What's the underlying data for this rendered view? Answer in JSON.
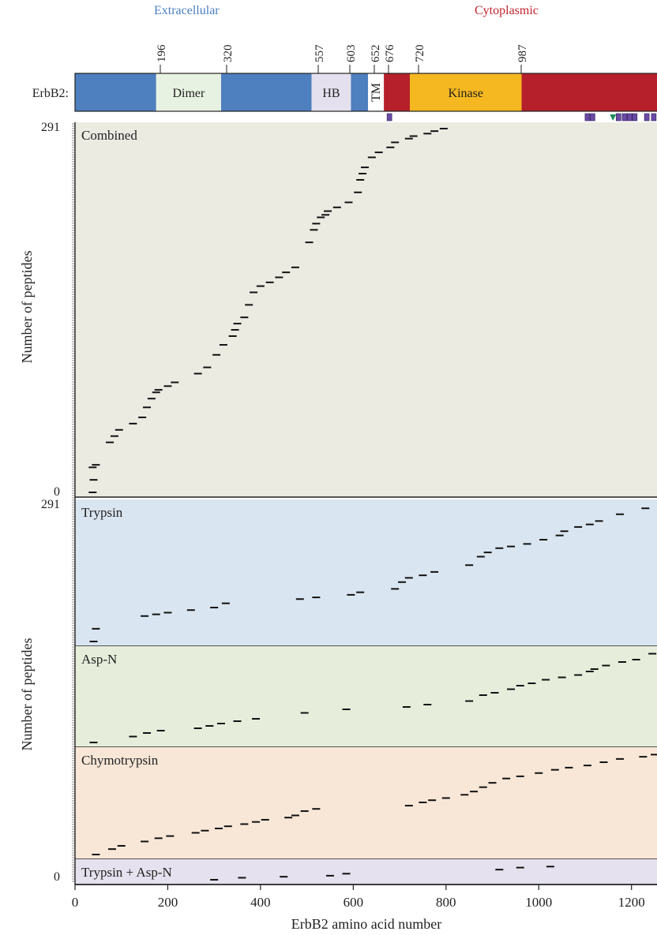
{
  "chart_data": {
    "type": "scatter",
    "xlabel": "ErbB2 amino acid number",
    "ylabel": "Number of peptides",
    "xlim": [
      0,
      1255
    ],
    "x_ticks": [
      0,
      200,
      400,
      600,
      800,
      1000,
      1200
    ],
    "y_tick_labels": {
      "combined_top": "291",
      "combined_bottom": "0",
      "lower_top": "291",
      "lower_bottom": "0"
    },
    "regions": [
      {
        "label": "Extracellular",
        "color": "#4a7fc0"
      },
      {
        "label": "Cytoplasmic",
        "color": "#c0242c"
      }
    ],
    "protein": {
      "label": "ErbB2:",
      "position_labels": [
        "196",
        "320",
        "557",
        "603",
        "652",
        "676",
        "720",
        "987"
      ],
      "domains": [
        {
          "start": 0,
          "end": 175,
          "color": "#4e7fbe",
          "text": ""
        },
        {
          "start": 175,
          "end": 315,
          "color": "#e8f2e2",
          "text": "Dimer"
        },
        {
          "start": 315,
          "end": 510,
          "color": "#4e7fbe",
          "text": ""
        },
        {
          "start": 510,
          "end": 595,
          "color": "#e5e0ee",
          "text": "HB"
        },
        {
          "start": 595,
          "end": 632,
          "color": "#4e7fbe",
          "text": ""
        },
        {
          "start": 632,
          "end": 666,
          "color": "#ffffff",
          "text": "TM"
        },
        {
          "start": 666,
          "end": 722,
          "color": "#b5202a",
          "text": ""
        },
        {
          "start": 722,
          "end": 963,
          "color": "#f5b820",
          "text": "Kinase"
        },
        {
          "start": 963,
          "end": 1255,
          "color": "#b5202a",
          "text": ""
        }
      ],
      "site_markers": [
        678,
        1105,
        1116,
        1172,
        1185,
        1196,
        1207,
        1233,
        1248
      ],
      "triangle_marker": 1160
    },
    "panels": [
      {
        "name": "Combined",
        "bg": "#ecebe2",
        "points": [
          [
            38,
            0
          ],
          [
            40,
            10
          ],
          [
            38,
            20
          ],
          [
            45,
            22
          ],
          [
            75,
            40
          ],
          [
            85,
            45
          ],
          [
            95,
            50
          ],
          [
            125,
            55
          ],
          [
            145,
            60
          ],
          [
            155,
            68
          ],
          [
            165,
            75
          ],
          [
            175,
            80
          ],
          [
            180,
            82
          ],
          [
            200,
            85
          ],
          [
            215,
            88
          ],
          [
            265,
            95
          ],
          [
            285,
            100
          ],
          [
            305,
            110
          ],
          [
            320,
            118
          ],
          [
            340,
            125
          ],
          [
            345,
            130
          ],
          [
            350,
            135
          ],
          [
            365,
            140
          ],
          [
            375,
            150
          ],
          [
            385,
            160
          ],
          [
            400,
            165
          ],
          [
            420,
            168
          ],
          [
            440,
            172
          ],
          [
            455,
            176
          ],
          [
            475,
            180
          ],
          [
            505,
            200
          ],
          [
            515,
            210
          ],
          [
            520,
            215
          ],
          [
            530,
            220
          ],
          [
            540,
            222
          ],
          [
            545,
            225
          ],
          [
            565,
            228
          ],
          [
            590,
            232
          ],
          [
            610,
            240
          ],
          [
            615,
            250
          ],
          [
            620,
            255
          ],
          [
            625,
            260
          ],
          [
            640,
            268
          ],
          [
            655,
            272
          ],
          [
            680,
            276
          ],
          [
            690,
            280
          ],
          [
            720,
            283
          ],
          [
            730,
            285
          ],
          [
            760,
            287
          ],
          [
            775,
            289
          ],
          [
            795,
            291
          ]
        ]
      },
      {
        "name": "Trypsin",
        "bg": "#d9e5f1",
        "points": [
          [
            40,
            0
          ],
          [
            45,
            15
          ],
          [
            150,
            30
          ],
          [
            175,
            32
          ],
          [
            200,
            34
          ],
          [
            250,
            37
          ],
          [
            300,
            40
          ],
          [
            325,
            45
          ],
          [
            485,
            50
          ],
          [
            520,
            52
          ],
          [
            595,
            55
          ],
          [
            615,
            58
          ],
          [
            690,
            62
          ],
          [
            705,
            70
          ],
          [
            720,
            75
          ],
          [
            750,
            78
          ],
          [
            775,
            82
          ],
          [
            850,
            90
          ],
          [
            875,
            100
          ],
          [
            890,
            105
          ],
          [
            915,
            110
          ],
          [
            940,
            112
          ],
          [
            975,
            115
          ],
          [
            1010,
            120
          ],
          [
            1045,
            125
          ],
          [
            1055,
            130
          ],
          [
            1085,
            135
          ],
          [
            1110,
            138
          ],
          [
            1130,
            142
          ],
          [
            1175,
            150
          ],
          [
            1230,
            157
          ]
        ]
      },
      {
        "name": "Asp-N",
        "bg": "#e6eedb",
        "points": [
          [
            40,
            0
          ],
          [
            125,
            5
          ],
          [
            155,
            8
          ],
          [
            185,
            10
          ],
          [
            265,
            12
          ],
          [
            290,
            14
          ],
          [
            315,
            16
          ],
          [
            350,
            18
          ],
          [
            390,
            20
          ],
          [
            495,
            25
          ],
          [
            585,
            28
          ],
          [
            715,
            30
          ],
          [
            760,
            32
          ],
          [
            850,
            35
          ],
          [
            880,
            40
          ],
          [
            905,
            42
          ],
          [
            940,
            45
          ],
          [
            960,
            48
          ],
          [
            985,
            50
          ],
          [
            1015,
            53
          ],
          [
            1050,
            55
          ],
          [
            1085,
            57
          ],
          [
            1110,
            60
          ],
          [
            1120,
            62
          ],
          [
            1145,
            65
          ],
          [
            1180,
            68
          ],
          [
            1210,
            70
          ],
          [
            1245,
            75
          ]
        ]
      },
      {
        "name": "Chymotrypsin",
        "bg": "#f8e7d7",
        "points": [
          [
            45,
            0
          ],
          [
            80,
            5
          ],
          [
            100,
            8
          ],
          [
            150,
            12
          ],
          [
            180,
            15
          ],
          [
            205,
            17
          ],
          [
            260,
            20
          ],
          [
            280,
            22
          ],
          [
            310,
            24
          ],
          [
            330,
            26
          ],
          [
            365,
            28
          ],
          [
            390,
            30
          ],
          [
            410,
            32
          ],
          [
            460,
            34
          ],
          [
            475,
            36
          ],
          [
            495,
            40
          ],
          [
            520,
            42
          ],
          [
            720,
            45
          ],
          [
            750,
            48
          ],
          [
            770,
            50
          ],
          [
            800,
            52
          ],
          [
            840,
            55
          ],
          [
            860,
            58
          ],
          [
            880,
            62
          ],
          [
            900,
            66
          ],
          [
            930,
            70
          ],
          [
            960,
            72
          ],
          [
            1000,
            75
          ],
          [
            1035,
            78
          ],
          [
            1065,
            80
          ],
          [
            1105,
            82
          ],
          [
            1140,
            85
          ],
          [
            1175,
            88
          ],
          [
            1225,
            90
          ],
          [
            1250,
            92
          ]
        ]
      },
      {
        "name": "Trypsin + Asp-N",
        "bg": "#e5e1ee",
        "points": [
          [
            300,
            0
          ],
          [
            360,
            2
          ],
          [
            450,
            3
          ],
          [
            550,
            4
          ],
          [
            585,
            6
          ],
          [
            915,
            10
          ],
          [
            960,
            12
          ],
          [
            1025,
            13
          ]
        ]
      }
    ]
  }
}
